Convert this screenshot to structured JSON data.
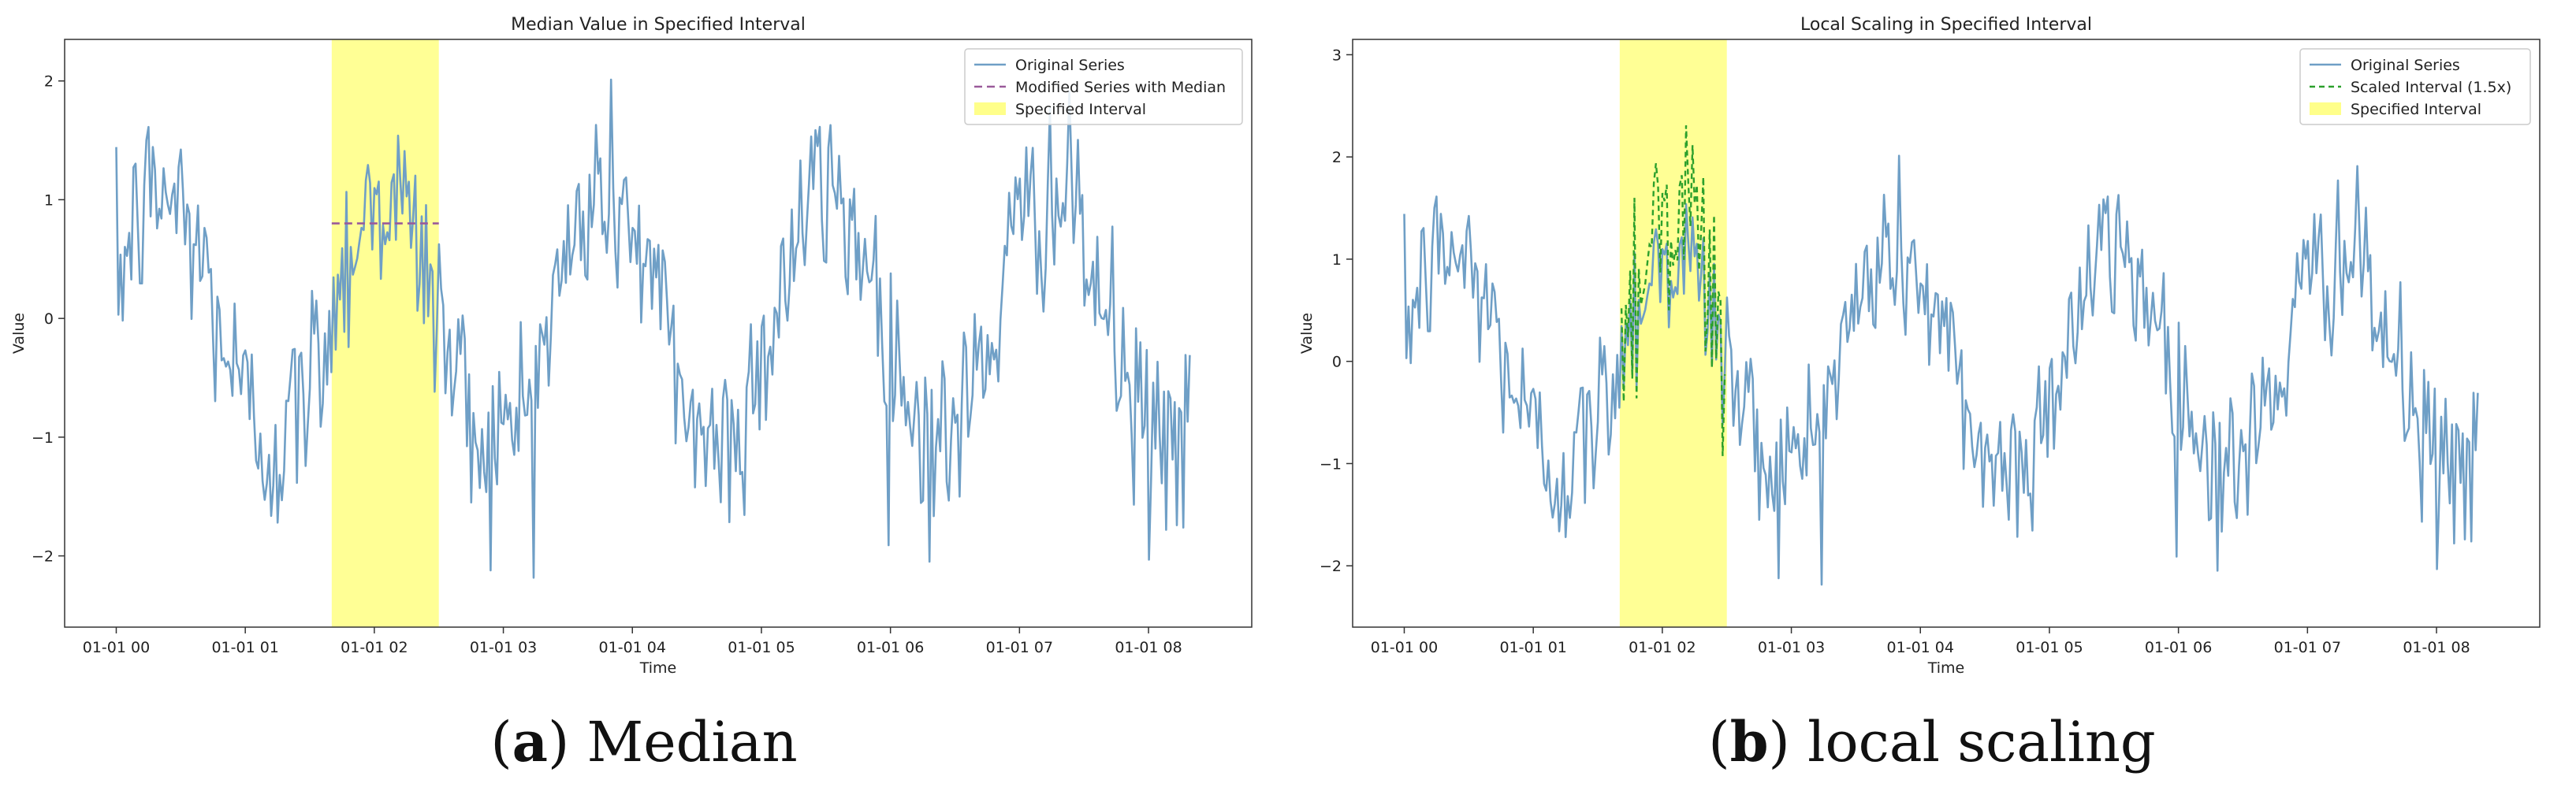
{
  "chart_data": [
    {
      "type": "line",
      "title": "Median Value in Specified Interval",
      "xlabel": "Time",
      "ylabel": "Value",
      "xlim": [
        -0.4,
        8.8
      ],
      "ylim": [
        -2.6,
        2.35
      ],
      "xticks": [
        0,
        1,
        2,
        3,
        4,
        5,
        6,
        7,
        8
      ],
      "xtick_labels": [
        "01-01 00",
        "01-01 01",
        "01-01 02",
        "01-01 03",
        "01-01 04",
        "01-01 05",
        "01-01 06",
        "01-01 07",
        "01-01 08"
      ],
      "yticks": [
        -2,
        -1,
        0,
        1,
        2
      ],
      "ytick_labels": [
        "−2",
        "−1",
        "0",
        "1",
        "2"
      ],
      "interval": [
        1.67,
        2.5
      ],
      "median_value": 0.8,
      "legend": [
        "Original Series",
        "Modified Series with Median",
        "Specified Interval"
      ],
      "legend_position": "top-right",
      "series": [
        {
          "name": "Original Series",
          "style": "solid",
          "color": "#6f9fc6",
          "points": 500,
          "x_range": [
            0,
            8.32
          ]
        },
        {
          "name": "Modified Series with Median",
          "style": "dashed",
          "color": "#9a5a9a",
          "constant": 0.8,
          "x_range": [
            1.67,
            2.5
          ]
        }
      ],
      "caption_label": "a",
      "caption_text": "Median"
    },
    {
      "type": "line",
      "title": "Local Scaling in Specified Interval",
      "xlabel": "Time",
      "ylabel": "Value",
      "xlim": [
        -0.4,
        8.8
      ],
      "ylim": [
        -2.6,
        3.15
      ],
      "xticks": [
        0,
        1,
        2,
        3,
        4,
        5,
        6,
        7,
        8
      ],
      "xtick_labels": [
        "01-01 00",
        "01-01 01",
        "01-01 02",
        "01-01 03",
        "01-01 04",
        "01-01 05",
        "01-01 06",
        "01-01 07",
        "01-01 08"
      ],
      "yticks": [
        -2,
        -1,
        0,
        1,
        2,
        3
      ],
      "ytick_labels": [
        "−2",
        "−1",
        "0",
        "1",
        "2",
        "3"
      ],
      "interval": [
        1.67,
        2.5
      ],
      "scale_factor": 1.5,
      "legend": [
        "Original Series",
        "Scaled Interval (1.5x)",
        "Specified Interval"
      ],
      "legend_position": "top-right",
      "series": [
        {
          "name": "Original Series",
          "style": "solid",
          "color": "#6f9fc6",
          "points": 500,
          "x_range": [
            0,
            8.32
          ]
        },
        {
          "name": "Scaled Interval (1.5x)",
          "style": "dashed",
          "color": "#2ca02c",
          "x_range": [
            1.67,
            2.5
          ]
        }
      ],
      "caption_label": "b",
      "caption_text": "local scaling"
    }
  ],
  "colors": {
    "interval_fill": "#ffff8a",
    "original": "#6f9fc6",
    "median": "#9a5a9a",
    "scaled": "#2ca02c"
  }
}
